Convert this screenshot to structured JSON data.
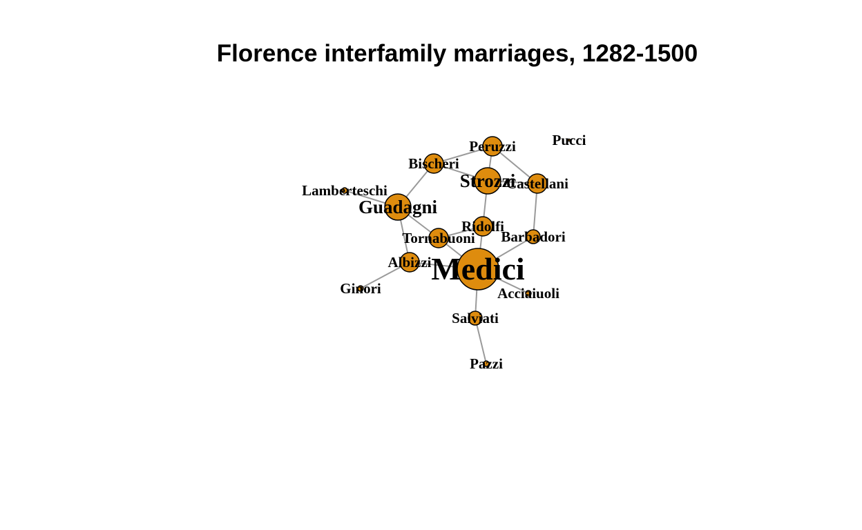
{
  "title": "Florence interfamily marriages, 1282-1500",
  "colors": {
    "node_fill": "#DE8C0E",
    "node_stroke": "#000000",
    "edge": "#9A9A9A",
    "label": "#000000"
  },
  "nodes": [
    {
      "id": "Acciaiuoli",
      "label": "Acciaiuoli"
    },
    {
      "id": "Albizzi",
      "label": "Albizzi"
    },
    {
      "id": "Barbadori",
      "label": "Barbadori"
    },
    {
      "id": "Bischeri",
      "label": "Bischeri"
    },
    {
      "id": "Castellani",
      "label": "Castellani"
    },
    {
      "id": "Ginori",
      "label": "Ginori"
    },
    {
      "id": "Guadagni",
      "label": "Guadagni"
    },
    {
      "id": "Lamberteschi",
      "label": "Lamberteschi"
    },
    {
      "id": "Medici",
      "label": "Medici"
    },
    {
      "id": "Pazzi",
      "label": "Pazzi"
    },
    {
      "id": "Peruzzi",
      "label": "Peruzzi"
    },
    {
      "id": "Pucci",
      "label": "Pucci"
    },
    {
      "id": "Ridolfi",
      "label": "Ridolfi"
    },
    {
      "id": "Salviati",
      "label": "Salviati"
    },
    {
      "id": "Strozzi",
      "label": "Strozzi"
    },
    {
      "id": "Tornabuoni",
      "label": "Tornabuoni"
    }
  ],
  "edges": [
    [
      "Acciaiuoli",
      "Medici"
    ],
    [
      "Albizzi",
      "Ginori"
    ],
    [
      "Albizzi",
      "Guadagni"
    ],
    [
      "Albizzi",
      "Medici"
    ],
    [
      "Barbadori",
      "Castellani"
    ],
    [
      "Barbadori",
      "Medici"
    ],
    [
      "Bischeri",
      "Guadagni"
    ],
    [
      "Bischeri",
      "Peruzzi"
    ],
    [
      "Bischeri",
      "Strozzi"
    ],
    [
      "Castellani",
      "Peruzzi"
    ],
    [
      "Castellani",
      "Strozzi"
    ],
    [
      "Guadagni",
      "Lamberteschi"
    ],
    [
      "Guadagni",
      "Tornabuoni"
    ],
    [
      "Medici",
      "Ridolfi"
    ],
    [
      "Medici",
      "Salviati"
    ],
    [
      "Medici",
      "Tornabuoni"
    ],
    [
      "Pazzi",
      "Salviati"
    ],
    [
      "Peruzzi",
      "Strozzi"
    ],
    [
      "Ridolfi",
      "Strozzi"
    ],
    [
      "Ridolfi",
      "Tornabuoni"
    ]
  ]
}
